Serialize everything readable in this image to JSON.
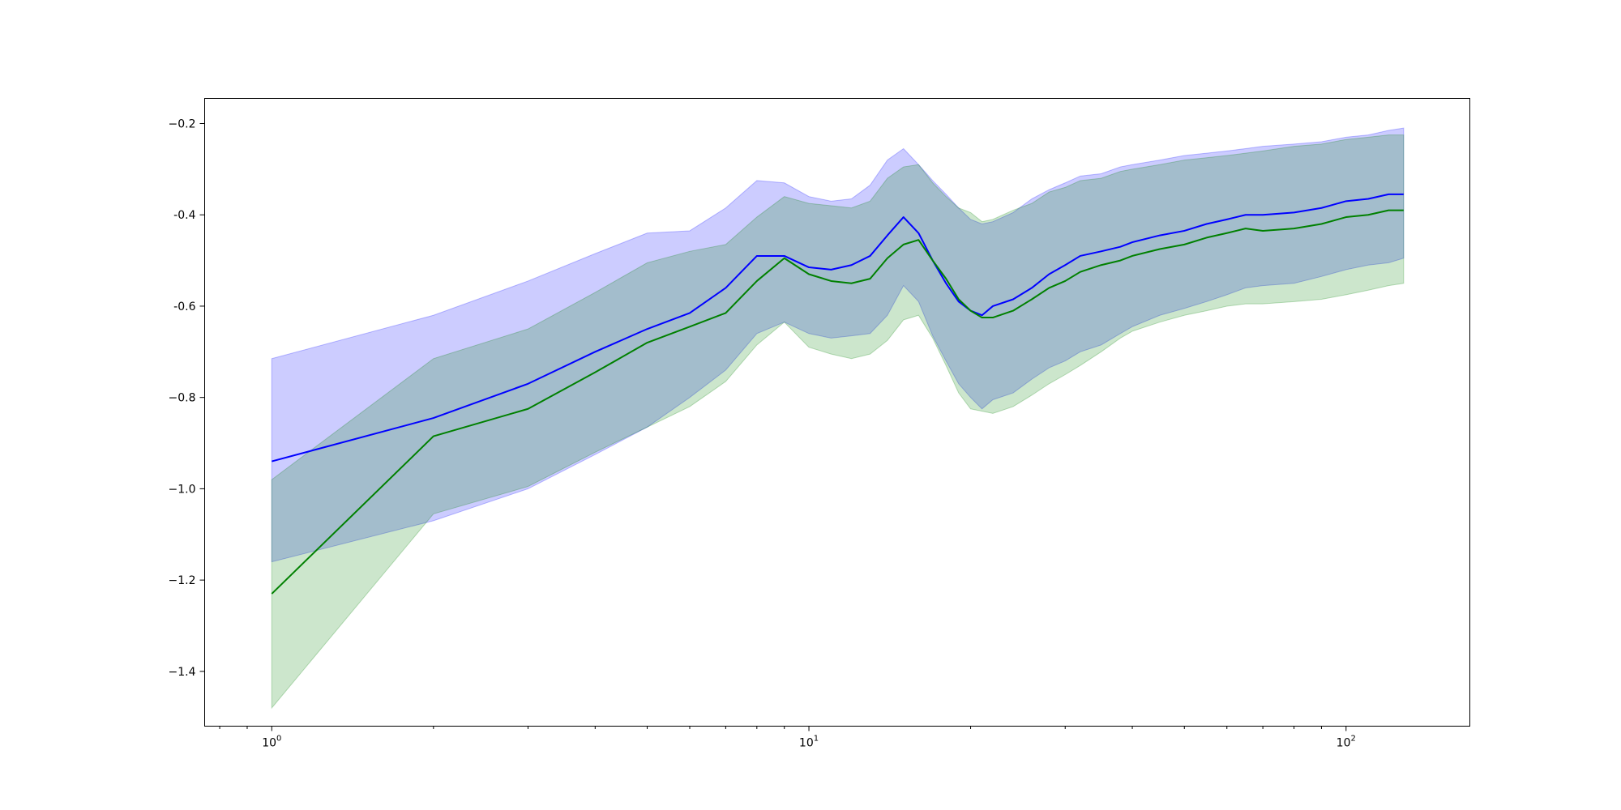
{
  "chart_data": {
    "type": "area",
    "title": "",
    "xlabel": "",
    "ylabel": "",
    "xscale": "log",
    "xlim": [
      0.75,
      170
    ],
    "ylim": [
      -1.52,
      -0.145
    ],
    "grid": false,
    "legend": "none",
    "x_ticks": [
      {
        "value": 1,
        "base": "10",
        "exp": "0"
      },
      {
        "value": 10,
        "base": "10",
        "exp": "1"
      },
      {
        "value": 100,
        "base": "10",
        "exp": "2"
      }
    ],
    "y_ticks": [
      {
        "value": -0.2,
        "label": "−0.2"
      },
      {
        "value": -0.4,
        "label": "-0.4"
      },
      {
        "value": -0.6,
        "label": "-0.6"
      },
      {
        "value": -0.8,
        "label": "−0.8"
      },
      {
        "value": -1.0,
        "label": "−1.0"
      },
      {
        "value": -1.2,
        "label": "−1.2"
      },
      {
        "value": -1.4,
        "label": "−1.4"
      }
    ],
    "series": [
      {
        "color": "#0000ff",
        "fill_color": "#0000ff",
        "fill_opacity": 0.2,
        "x": [
          1,
          2,
          3,
          4,
          5,
          6,
          7,
          8,
          9,
          10,
          11,
          12,
          13,
          14,
          15,
          16,
          17,
          18,
          19,
          20,
          21,
          22,
          24,
          26,
          28,
          30,
          32,
          35,
          38,
          40,
          45,
          50,
          55,
          60,
          65,
          70,
          80,
          90,
          100,
          110,
          120,
          128
        ],
        "y": [
          -0.94,
          -0.845,
          -0.77,
          -0.7,
          -0.65,
          -0.615,
          -0.56,
          -0.49,
          -0.49,
          -0.515,
          -0.52,
          -0.51,
          -0.49,
          -0.445,
          -0.405,
          -0.44,
          -0.5,
          -0.55,
          -0.59,
          -0.61,
          -0.62,
          -0.6,
          -0.585,
          -0.56,
          -0.53,
          -0.51,
          -0.49,
          -0.48,
          -0.47,
          -0.46,
          -0.445,
          -0.435,
          -0.42,
          -0.41,
          -0.4,
          -0.4,
          -0.395,
          -0.385,
          -0.37,
          -0.365,
          -0.355,
          -0.355
        ],
        "upper": [
          -0.715,
          -0.62,
          -0.545,
          -0.485,
          -0.44,
          -0.435,
          -0.385,
          -0.325,
          -0.33,
          -0.36,
          -0.37,
          -0.365,
          -0.335,
          -0.28,
          -0.255,
          -0.29,
          -0.325,
          -0.355,
          -0.385,
          -0.41,
          -0.42,
          -0.415,
          -0.395,
          -0.365,
          -0.345,
          -0.33,
          -0.315,
          -0.31,
          -0.295,
          -0.29,
          -0.28,
          -0.27,
          -0.265,
          -0.26,
          -0.255,
          -0.25,
          -0.245,
          -0.24,
          -0.23,
          -0.225,
          -0.215,
          -0.21
        ],
        "lower": [
          -1.16,
          -1.07,
          -1.0,
          -0.925,
          -0.865,
          -0.8,
          -0.74,
          -0.66,
          -0.635,
          -0.66,
          -0.67,
          -0.665,
          -0.66,
          -0.62,
          -0.555,
          -0.59,
          -0.665,
          -0.72,
          -0.77,
          -0.8,
          -0.825,
          -0.805,
          -0.79,
          -0.76,
          -0.735,
          -0.72,
          -0.7,
          -0.685,
          -0.66,
          -0.645,
          -0.62,
          -0.605,
          -0.59,
          -0.575,
          -0.56,
          -0.555,
          -0.55,
          -0.535,
          -0.52,
          -0.51,
          -0.505,
          -0.495
        ]
      },
      {
        "color": "#008000",
        "fill_color": "#008000",
        "fill_opacity": 0.2,
        "x": [
          1,
          2,
          3,
          4,
          5,
          6,
          7,
          8,
          9,
          10,
          11,
          12,
          13,
          14,
          15,
          16,
          17,
          18,
          19,
          20,
          21,
          22,
          24,
          26,
          28,
          30,
          32,
          35,
          38,
          40,
          45,
          50,
          55,
          60,
          65,
          70,
          80,
          90,
          100,
          110,
          120,
          128
        ],
        "y": [
          -1.23,
          -0.885,
          -0.825,
          -0.745,
          -0.68,
          -0.645,
          -0.615,
          -0.545,
          -0.495,
          -0.53,
          -0.545,
          -0.55,
          -0.54,
          -0.495,
          -0.465,
          -0.455,
          -0.5,
          -0.54,
          -0.585,
          -0.61,
          -0.625,
          -0.625,
          -0.61,
          -0.585,
          -0.56,
          -0.545,
          -0.525,
          -0.51,
          -0.5,
          -0.49,
          -0.475,
          -0.465,
          -0.45,
          -0.44,
          -0.43,
          -0.435,
          -0.43,
          -0.42,
          -0.405,
          -0.4,
          -0.39,
          -0.39
        ],
        "upper": [
          -0.98,
          -0.715,
          -0.65,
          -0.57,
          -0.505,
          -0.48,
          -0.465,
          -0.405,
          -0.36,
          -0.375,
          -0.38,
          -0.385,
          -0.37,
          -0.32,
          -0.295,
          -0.29,
          -0.33,
          -0.36,
          -0.385,
          -0.395,
          -0.415,
          -0.41,
          -0.39,
          -0.375,
          -0.35,
          -0.34,
          -0.325,
          -0.32,
          -0.305,
          -0.3,
          -0.29,
          -0.28,
          -0.275,
          -0.27,
          -0.265,
          -0.26,
          -0.25,
          -0.245,
          -0.235,
          -0.23,
          -0.225,
          -0.225
        ],
        "lower": [
          -1.48,
          -1.055,
          -0.995,
          -0.92,
          -0.865,
          -0.82,
          -0.765,
          -0.685,
          -0.635,
          -0.69,
          -0.705,
          -0.715,
          -0.705,
          -0.675,
          -0.63,
          -0.62,
          -0.67,
          -0.73,
          -0.79,
          -0.825,
          -0.83,
          -0.835,
          -0.82,
          -0.795,
          -0.77,
          -0.75,
          -0.73,
          -0.7,
          -0.67,
          -0.655,
          -0.635,
          -0.62,
          -0.61,
          -0.6,
          -0.595,
          -0.595,
          -0.59,
          -0.585,
          -0.575,
          -0.565,
          -0.555,
          -0.55
        ]
      }
    ]
  }
}
